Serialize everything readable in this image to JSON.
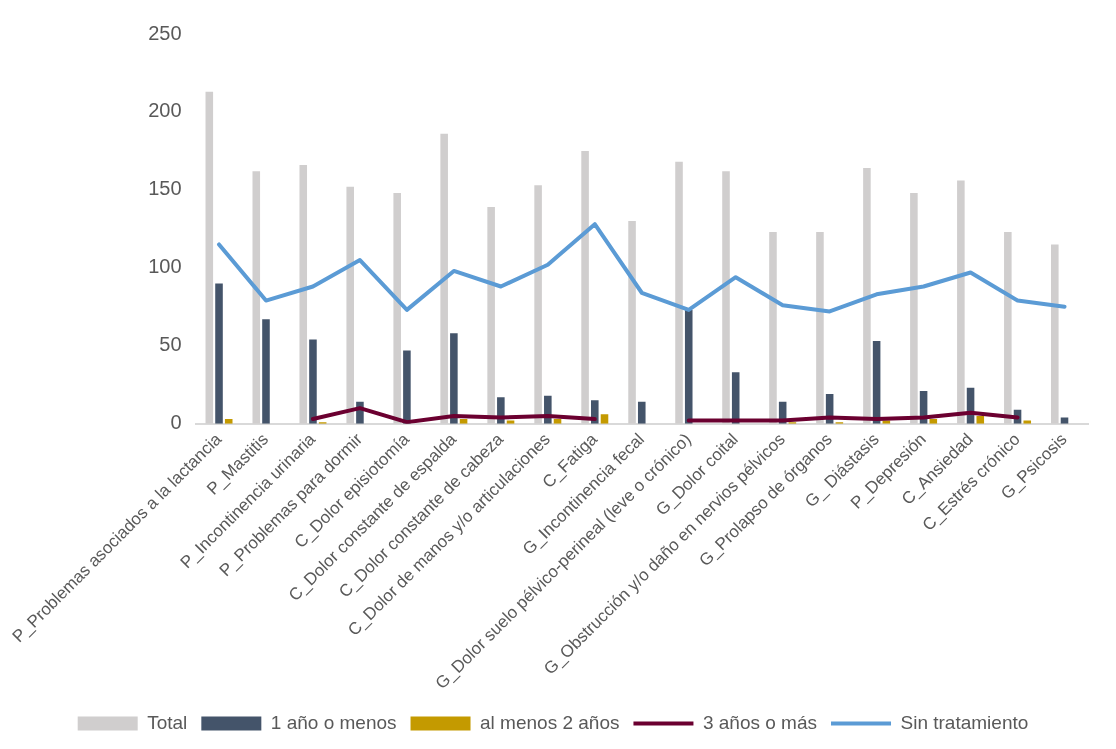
{
  "chart_data": {
    "type": "bar",
    "categories": [
      "P_Problemas asociados a la lactancia",
      "P_Mastitis",
      "P_Incontinencia urinaria",
      "P_Problemas para dormir",
      "C_Dolor episiotomía",
      "C_Dolor constante de espalda",
      "C_Dolor constante de cabeza",
      "C_Dolor de manos y/o articulaciones",
      "C_Fatiga",
      "G_Incontinencia fecal",
      "G_Dolor suelo pélvico-perineal (leve o crónico)",
      "G_Dolor coital",
      "G_Obstrucción y/o daño en nervios pélvicos",
      "G_Prolapso de órganos",
      "G_ Diástasis",
      "P_Depresión",
      "C_Ansiedad",
      "C_Estrés crónico",
      "G_Psicosis"
    ],
    "series": [
      {
        "name": "Total",
        "color": "#d0cece",
        "values": [
          213,
          162,
          166,
          152,
          148,
          186,
          139,
          153,
          175,
          130,
          168,
          162,
          123,
          123,
          164,
          148,
          156,
          123,
          115
        ]
      },
      {
        "name": "1 año o menos",
        "color": "#44546a",
        "values": [
          90,
          67,
          54,
          14,
          47,
          58,
          17,
          18,
          15,
          14,
          73,
          33,
          14,
          19,
          53,
          21,
          23,
          9,
          4
        ]
      },
      {
        "name": "al menos 2 años",
        "color": "#c49a00",
        "values": [
          3,
          0,
          1,
          0,
          0,
          3,
          2,
          3,
          6,
          0,
          0,
          0,
          1,
          1,
          2,
          3,
          5,
          2,
          0
        ]
      },
      {
        "name": "3 años o más",
        "type": "line",
        "color": "#6b0030",
        "values": [
          null,
          null,
          3,
          10,
          1,
          5,
          4,
          5,
          3,
          null,
          2,
          2,
          2,
          4,
          3,
          4,
          7,
          4,
          null
        ]
      },
      {
        "name": "Sin tratamiento",
        "type": "line",
        "color": "#5b9bd5",
        "values": [
          115,
          79,
          88,
          105,
          73,
          98,
          88,
          102,
          128,
          84,
          73,
          94,
          76,
          72,
          83,
          88,
          97,
          79,
          75
        ]
      }
    ],
    "ylim": [
      0,
      250
    ],
    "yticks": [
      0,
      50,
      100,
      150,
      200,
      250
    ],
    "grid": false,
    "legend": "bottom"
  }
}
